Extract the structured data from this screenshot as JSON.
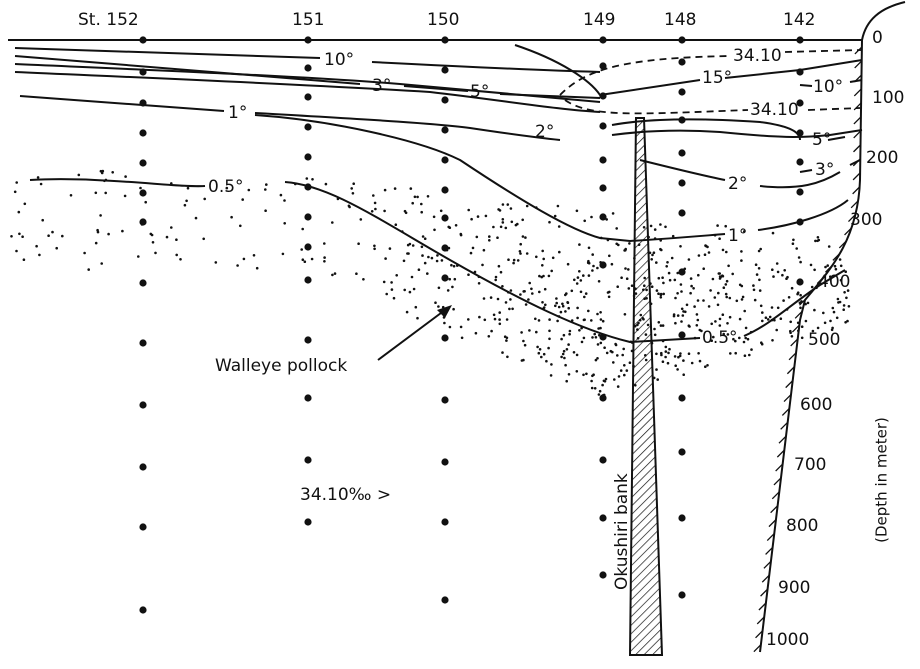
{
  "stations": [
    "St. 152",
    "151",
    "150",
    "149",
    "148",
    "142"
  ],
  "contour_labels": [
    "10°",
    "3°",
    "5°",
    "1°",
    "2°",
    "0.5°",
    "15°",
    "10°",
    "5°",
    "3°",
    "2°",
    "1°",
    "0.5°"
  ],
  "salinity_labels": [
    "34.10",
    "34.10",
    "34.10‰ >"
  ],
  "annotations": {
    "species": "Walleye pollock",
    "bank": "Okushiri bank"
  },
  "depth_axis": {
    "ticks": [
      0,
      100,
      200,
      300,
      400,
      500,
      600,
      700,
      800,
      900,
      1000
    ],
    "title": "(Depth in meter)"
  }
}
